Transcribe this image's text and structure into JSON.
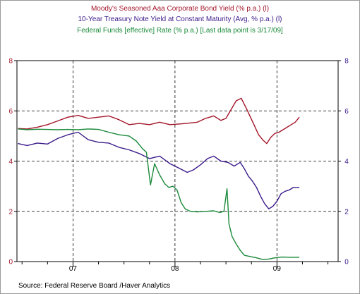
{
  "chart_data": {
    "type": "line",
    "legend": [
      {
        "text": "Moody's Seasoned Aaa Corporate Bond Yield (% p.a.) (l)",
        "color": "#a3162a"
      },
      {
        "text": "10-Year Treasury Note Yield at Constant Maturity (Avg, % p.a.) (l)",
        "color": "#3a1a8a"
      },
      {
        "text": "Federal Funds [effective] Rate (% p.a.)  [Last data point is 3/17/09]",
        "color": "#1a8a3a"
      }
    ],
    "left_axis": {
      "color": "#a3162a",
      "ticks": [
        "0",
        "2",
        "4",
        "6",
        "8"
      ],
      "ylim": [
        0,
        8
      ]
    },
    "right_axis": {
      "color": "#3a1a8a",
      "ticks": [
        "0",
        "2",
        "4",
        "6",
        "8"
      ],
      "ylim": [
        0,
        8
      ]
    },
    "x_axis": {
      "labels": [
        "07",
        "08",
        "09"
      ],
      "xlim": [
        2006.45,
        2009.6
      ],
      "major": [
        2007.0,
        2008.0,
        2009.0
      ]
    },
    "grid": true,
    "source": "Source:  Federal Reserve Board /Haver Analytics",
    "series": [
      {
        "name": "Moody's Seasoned Aaa Corporate Bond Yield",
        "color": "#a3162a",
        "points": [
          [
            2006.46,
            5.3
          ],
          [
            2006.55,
            5.28
          ],
          [
            2006.65,
            5.35
          ],
          [
            2006.75,
            5.45
          ],
          [
            2006.85,
            5.6
          ],
          [
            2006.95,
            5.75
          ],
          [
            2007.05,
            5.82
          ],
          [
            2007.15,
            5.7
          ],
          [
            2007.25,
            5.75
          ],
          [
            2007.35,
            5.8
          ],
          [
            2007.45,
            5.65
          ],
          [
            2007.55,
            5.45
          ],
          [
            2007.65,
            5.5
          ],
          [
            2007.75,
            5.45
          ],
          [
            2007.85,
            5.55
          ],
          [
            2007.95,
            5.45
          ],
          [
            2008.05,
            5.48
          ],
          [
            2008.15,
            5.52
          ],
          [
            2008.22,
            5.55
          ],
          [
            2008.3,
            5.7
          ],
          [
            2008.38,
            5.8
          ],
          [
            2008.45,
            5.62
          ],
          [
            2008.5,
            5.7
          ],
          [
            2008.55,
            6.05
          ],
          [
            2008.6,
            6.4
          ],
          [
            2008.65,
            6.5
          ],
          [
            2008.7,
            6.1
          ],
          [
            2008.74,
            5.75
          ],
          [
            2008.78,
            5.4
          ],
          [
            2008.82,
            5.05
          ],
          [
            2008.86,
            4.85
          ],
          [
            2008.9,
            4.7
          ],
          [
            2008.94,
            4.95
          ],
          [
            2008.98,
            5.1
          ],
          [
            2009.02,
            5.15
          ],
          [
            2009.06,
            5.25
          ],
          [
            2009.1,
            5.35
          ],
          [
            2009.14,
            5.45
          ],
          [
            2009.18,
            5.55
          ],
          [
            2009.22,
            5.75
          ]
        ]
      },
      {
        "name": "10-Year Treasury Note Yield at Constant Maturity",
        "color": "#3a1a8a",
        "points": [
          [
            2006.46,
            4.7
          ],
          [
            2006.55,
            4.62
          ],
          [
            2006.65,
            4.72
          ],
          [
            2006.75,
            4.68
          ],
          [
            2006.85,
            4.9
          ],
          [
            2006.95,
            5.05
          ],
          [
            2007.05,
            5.15
          ],
          [
            2007.15,
            4.85
          ],
          [
            2007.25,
            4.75
          ],
          [
            2007.35,
            4.72
          ],
          [
            2007.45,
            4.55
          ],
          [
            2007.55,
            4.45
          ],
          [
            2007.65,
            4.3
          ],
          [
            2007.75,
            4.1
          ],
          [
            2007.85,
            4.2
          ],
          [
            2007.95,
            3.9
          ],
          [
            2008.05,
            3.7
          ],
          [
            2008.12,
            3.55
          ],
          [
            2008.18,
            3.65
          ],
          [
            2008.25,
            3.85
          ],
          [
            2008.32,
            4.1
          ],
          [
            2008.38,
            4.2
          ],
          [
            2008.45,
            4.0
          ],
          [
            2008.52,
            3.95
          ],
          [
            2008.58,
            3.8
          ],
          [
            2008.64,
            3.95
          ],
          [
            2008.68,
            3.7
          ],
          [
            2008.72,
            3.4
          ],
          [
            2008.76,
            3.2
          ],
          [
            2008.8,
            2.95
          ],
          [
            2008.84,
            2.6
          ],
          [
            2008.88,
            2.3
          ],
          [
            2008.92,
            2.1
          ],
          [
            2008.96,
            2.2
          ],
          [
            2009.0,
            2.4
          ],
          [
            2009.04,
            2.7
          ],
          [
            2009.08,
            2.8
          ],
          [
            2009.12,
            2.85
          ],
          [
            2009.16,
            2.95
          ],
          [
            2009.22,
            2.95
          ]
        ]
      },
      {
        "name": "Federal Funds [effective] Rate",
        "color": "#1a8a3a",
        "points": [
          [
            2006.46,
            5.28
          ],
          [
            2006.55,
            5.25
          ],
          [
            2006.65,
            5.27
          ],
          [
            2006.75,
            5.26
          ],
          [
            2006.85,
            5.25
          ],
          [
            2006.95,
            5.26
          ],
          [
            2007.05,
            5.25
          ],
          [
            2007.15,
            5.28
          ],
          [
            2007.25,
            5.26
          ],
          [
            2007.35,
            5.15
          ],
          [
            2007.45,
            5.05
          ],
          [
            2007.55,
            5.0
          ],
          [
            2007.62,
            4.8
          ],
          [
            2007.68,
            4.5
          ],
          [
            2007.72,
            4.35
          ],
          [
            2007.76,
            3.05
          ],
          [
            2007.8,
            3.9
          ],
          [
            2007.85,
            3.45
          ],
          [
            2007.9,
            3.1
          ],
          [
            2007.94,
            2.95
          ],
          [
            2007.98,
            3.0
          ],
          [
            2008.02,
            2.85
          ],
          [
            2008.06,
            2.35
          ],
          [
            2008.1,
            2.1
          ],
          [
            2008.15,
            2.0
          ],
          [
            2008.22,
            1.98
          ],
          [
            2008.3,
            2.0
          ],
          [
            2008.38,
            2.02
          ],
          [
            2008.44,
            1.95
          ],
          [
            2008.48,
            2.0
          ],
          [
            2008.51,
            2.9
          ],
          [
            2008.53,
            1.5
          ],
          [
            2008.56,
            1.0
          ],
          [
            2008.6,
            0.7
          ],
          [
            2008.64,
            0.45
          ],
          [
            2008.68,
            0.25
          ],
          [
            2008.74,
            0.2
          ],
          [
            2008.8,
            0.15
          ],
          [
            2008.86,
            0.08
          ],
          [
            2008.92,
            0.1
          ],
          [
            2008.98,
            0.15
          ],
          [
            2009.05,
            0.18
          ],
          [
            2009.12,
            0.17
          ],
          [
            2009.22,
            0.17
          ]
        ]
      }
    ]
  }
}
